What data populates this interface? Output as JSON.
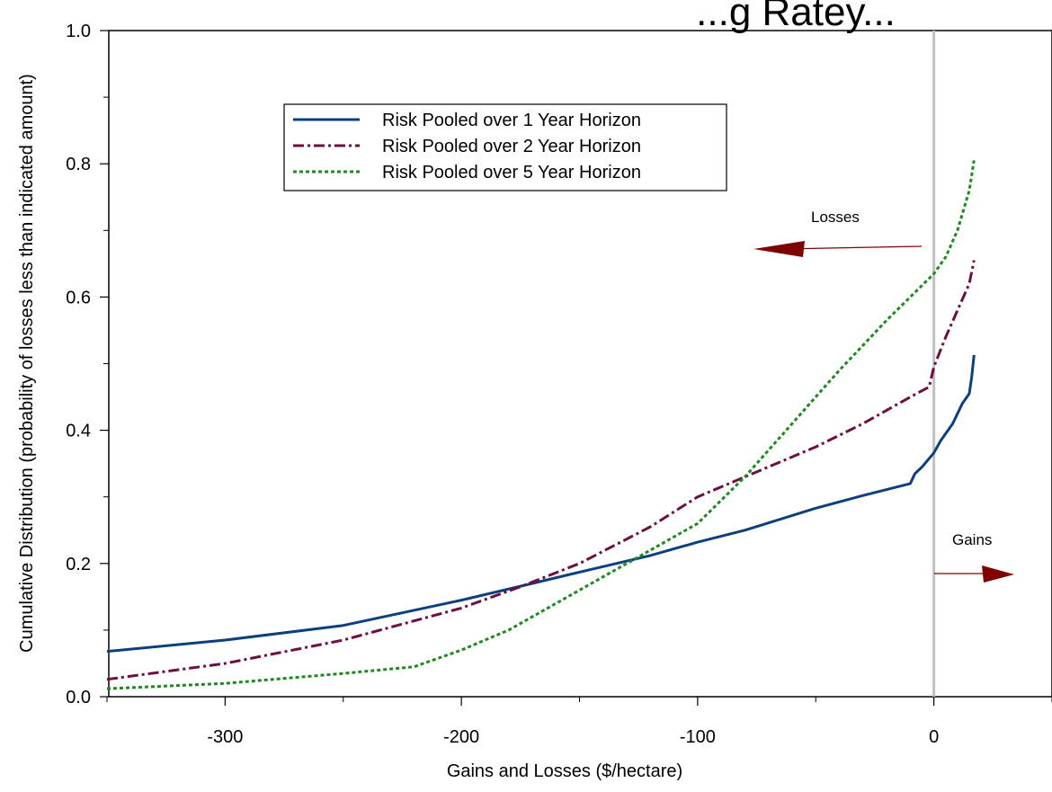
{
  "chart_data": {
    "type": "line",
    "title": "...g Ratey...",
    "xlabel": "Gains and Losses ($/hectare)",
    "ylabel": "Cumulative Distribution (probability of losses less than indicated amount)",
    "xlim": [
      -350,
      50
    ],
    "ylim": [
      0,
      1.0
    ],
    "x_ticks": [
      -300,
      -200,
      -100,
      0
    ],
    "x_minor_ticks": [
      -350,
      -250,
      -150,
      -50,
      50
    ],
    "y_ticks": [
      0.0,
      0.2,
      0.4,
      0.6,
      0.8,
      1.0
    ],
    "y_tick_labels": [
      "0.0",
      "0.2",
      "0.4",
      "0.6",
      "0.8",
      "1.0"
    ],
    "grid": false,
    "legend_position": "upper-left",
    "reference_line_x": 0,
    "series": [
      {
        "name": "Risk Pooled over 1 Year Horizon",
        "color": "#0b3f7e",
        "style": "solid",
        "x": [
          -350,
          -300,
          -250,
          -200,
          -170,
          -150,
          -120,
          -100,
          -80,
          -50,
          -30,
          -10,
          -8,
          -5,
          0,
          3,
          8,
          12,
          15,
          16,
          17
        ],
        "y": [
          0.068,
          0.085,
          0.107,
          0.145,
          0.17,
          0.187,
          0.212,
          0.232,
          0.25,
          0.283,
          0.302,
          0.32,
          0.335,
          0.345,
          0.366,
          0.385,
          0.41,
          0.44,
          0.455,
          0.48,
          0.513
        ]
      },
      {
        "name": "Risk Pooled over 2 Year Horizon",
        "color": "#6d0f3f",
        "style": "dashdot",
        "x": [
          -350,
          -300,
          -250,
          -200,
          -175,
          -150,
          -120,
          -100,
          -80,
          -50,
          -30,
          -10,
          -2,
          0,
          5,
          10,
          15,
          17
        ],
        "y": [
          0.026,
          0.05,
          0.085,
          0.133,
          0.165,
          0.2,
          0.255,
          0.3,
          0.33,
          0.375,
          0.41,
          0.45,
          0.465,
          0.495,
          0.54,
          0.58,
          0.62,
          0.655
        ]
      },
      {
        "name": "Risk Pooled over 5 Year Horizon",
        "color": "#1e8a1e",
        "style": "dotted",
        "x": [
          -350,
          -300,
          -250,
          -220,
          -200,
          -180,
          -160,
          -140,
          -120,
          -100,
          -80,
          -60,
          -40,
          -20,
          0,
          5,
          10,
          15,
          17
        ],
        "y": [
          0.012,
          0.02,
          0.035,
          0.045,
          0.07,
          0.1,
          0.14,
          0.18,
          0.22,
          0.26,
          0.33,
          0.41,
          0.49,
          0.565,
          0.635,
          0.66,
          0.7,
          0.76,
          0.805
        ]
      }
    ],
    "annotations": [
      {
        "text": "Losses",
        "arrow_direction": "left",
        "arrow_color": "#800000"
      },
      {
        "text": "Gains",
        "arrow_direction": "right",
        "arrow_color": "#800000"
      }
    ]
  }
}
